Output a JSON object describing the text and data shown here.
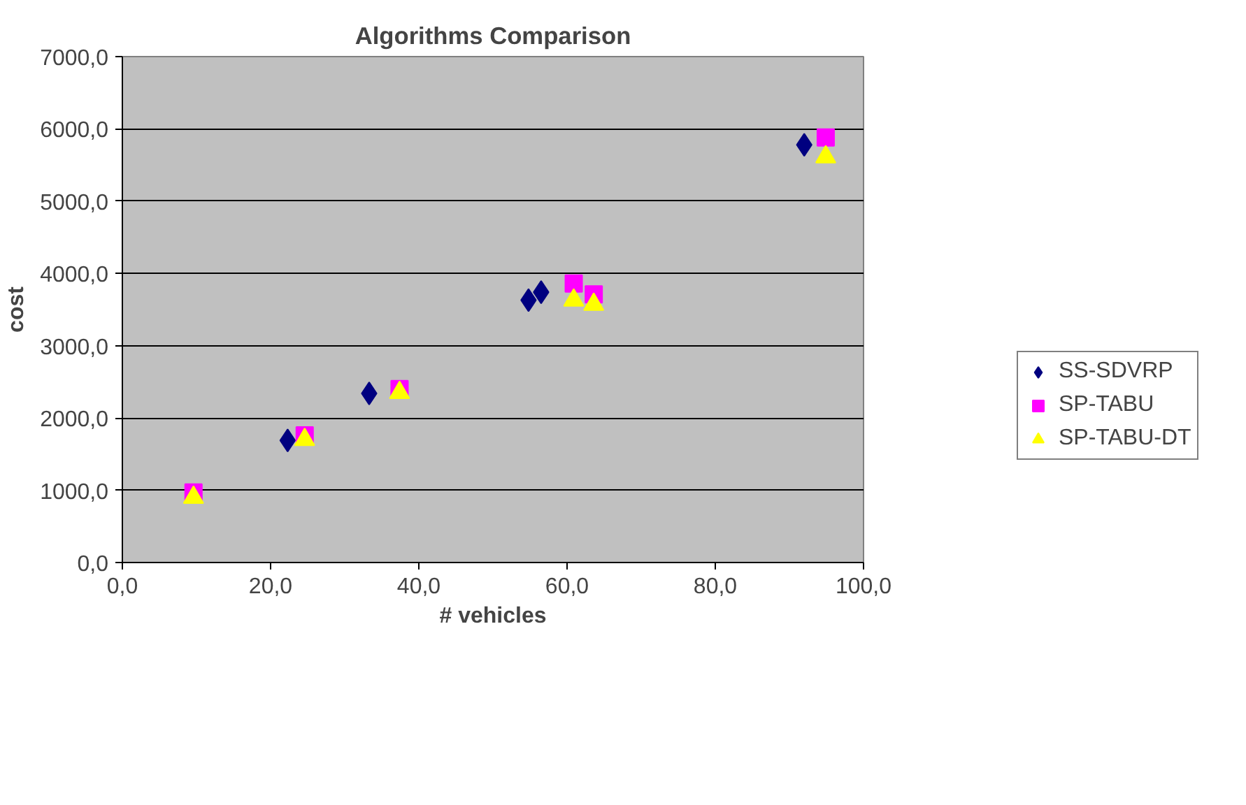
{
  "chart_data": {
    "type": "scatter",
    "title": "Algorithms Comparison",
    "xlabel": "# vehicles",
    "ylabel": "cost",
    "xlim": [
      0,
      100
    ],
    "ylim": [
      0,
      7000
    ],
    "xticks": [
      {
        "value": 0,
        "label": "0,0"
      },
      {
        "value": 20,
        "label": "20,0"
      },
      {
        "value": 40,
        "label": "40,0"
      },
      {
        "value": 60,
        "label": "60,0"
      },
      {
        "value": 80,
        "label": "80,0"
      },
      {
        "value": 100,
        "label": "100,0"
      }
    ],
    "yticks": [
      {
        "value": 0,
        "label": "0,0"
      },
      {
        "value": 1000,
        "label": "1000,0"
      },
      {
        "value": 2000,
        "label": "2000,0"
      },
      {
        "value": 3000,
        "label": "3000,0"
      },
      {
        "value": 4000,
        "label": "4000,0"
      },
      {
        "value": 5000,
        "label": "5000,0"
      },
      {
        "value": 6000,
        "label": "6000,0"
      },
      {
        "value": 7000,
        "label": "7000,0"
      }
    ],
    "grid": "y",
    "legend": "right",
    "series": [
      {
        "name": "SS-SDVRP",
        "color": "#000080",
        "marker": "diamond",
        "x": [
          22.3,
          33.3,
          54.8,
          56.5,
          92.0
        ],
        "values": [
          1690,
          2340,
          3630,
          3740,
          5780
        ]
      },
      {
        "name": "SP-TABU",
        "color": "#ff00ff",
        "marker": "square",
        "x": [
          9.6,
          24.6,
          37.4,
          60.9,
          63.6,
          94.9
        ],
        "values": [
          970,
          1760,
          2400,
          3860,
          3710,
          5880
        ]
      },
      {
        "name": "SP-TABU-DT",
        "color": "#ffff00",
        "marker": "triangle",
        "x": [
          9.6,
          24.6,
          37.4,
          60.9,
          63.6,
          94.9
        ],
        "values": [
          900,
          1700,
          2350,
          3630,
          3570,
          5610
        ]
      }
    ]
  }
}
